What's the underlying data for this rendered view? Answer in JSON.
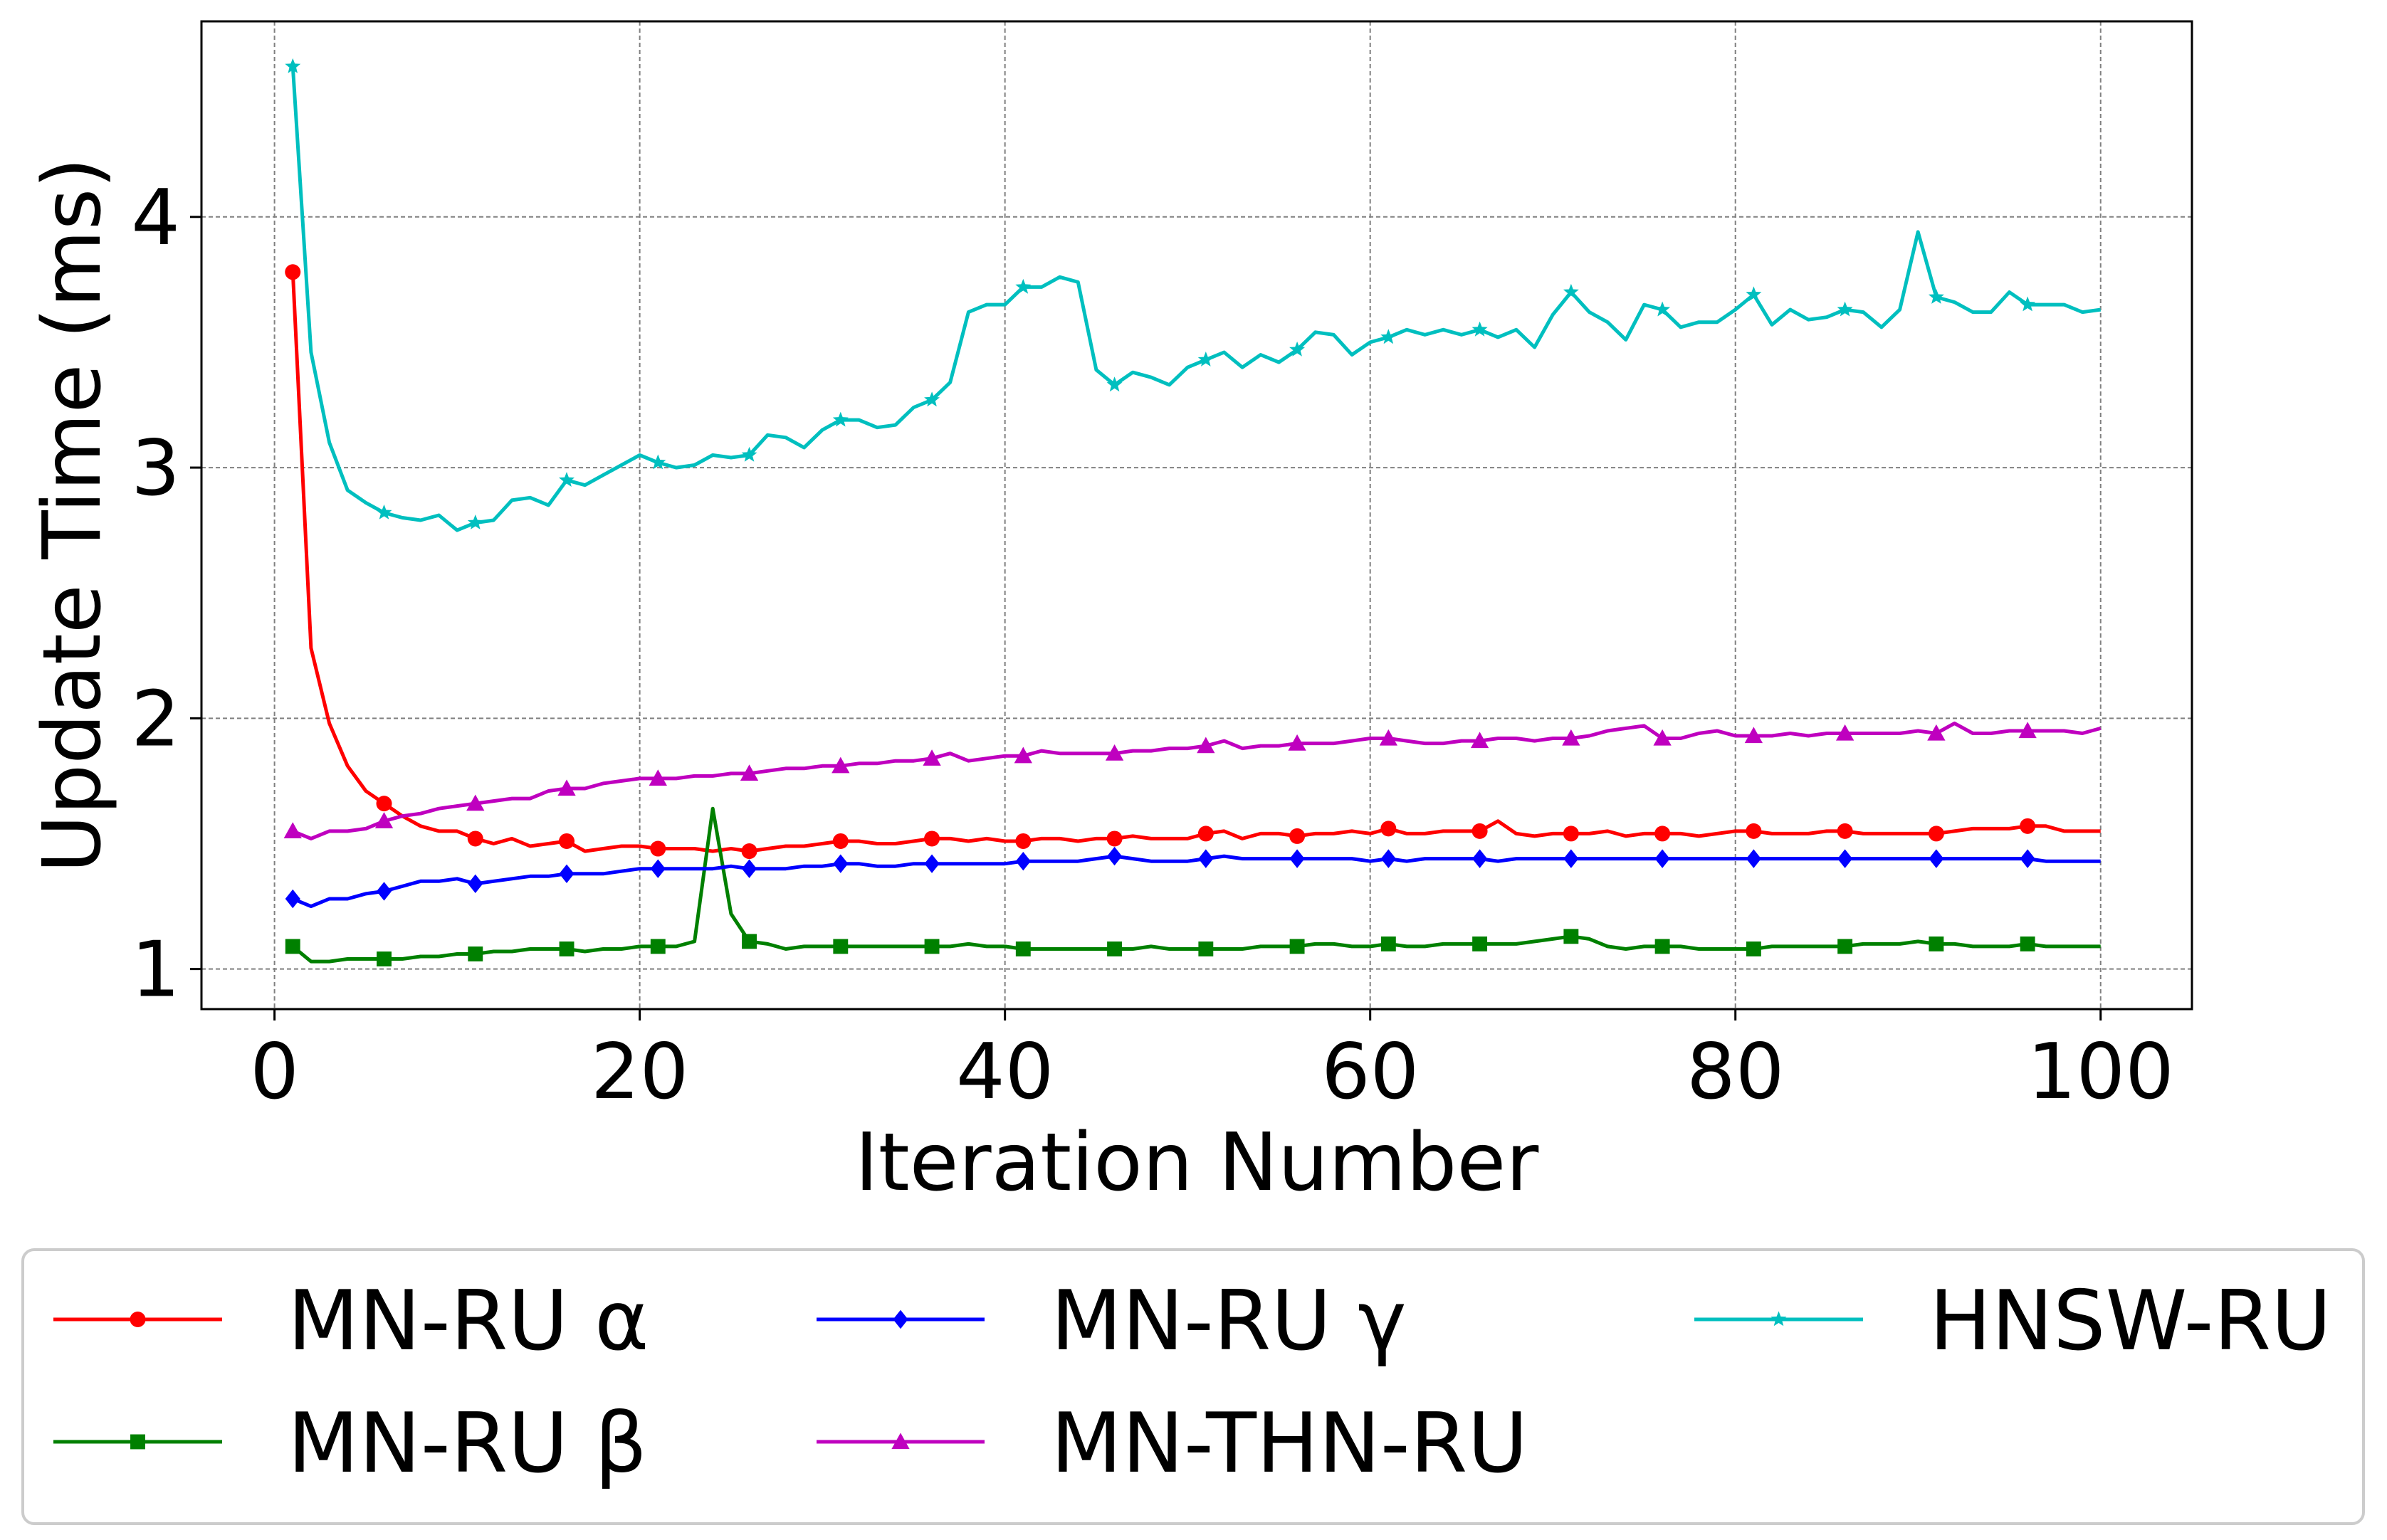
{
  "chart_data": {
    "type": "line",
    "title": "",
    "xlabel": "Iteration Number",
    "ylabel": "Update Time (ms)",
    "xlim": [
      -4,
      105
    ],
    "ylim": [
      0.84,
      4.78
    ],
    "xticks": [
      0,
      20,
      40,
      60,
      80,
      100
    ],
    "yticks": [
      1,
      2,
      3,
      4
    ],
    "grid": true,
    "legend_position": "bottom, outside, 3 columns",
    "x": [
      1,
      2,
      3,
      4,
      5,
      6,
      7,
      8,
      9,
      10,
      11,
      12,
      13,
      14,
      15,
      16,
      17,
      18,
      19,
      20,
      21,
      22,
      23,
      24,
      25,
      26,
      27,
      28,
      29,
      30,
      31,
      32,
      33,
      34,
      35,
      36,
      37,
      38,
      39,
      40,
      41,
      42,
      43,
      44,
      45,
      46,
      47,
      48,
      49,
      50,
      51,
      52,
      53,
      54,
      55,
      56,
      57,
      58,
      59,
      60,
      61,
      62,
      63,
      64,
      65,
      66,
      67,
      68,
      69,
      70,
      71,
      72,
      73,
      74,
      75,
      76,
      77,
      78,
      79,
      80,
      81,
      82,
      83,
      84,
      85,
      86,
      87,
      88,
      89,
      90,
      91,
      92,
      93,
      94,
      95,
      96,
      97,
      98,
      99,
      100
    ],
    "series": [
      {
        "name": "MN-RU α",
        "color": "#ff0000",
        "marker": "circle",
        "values": [
          3.78,
          2.28,
          1.98,
          1.81,
          1.71,
          1.66,
          1.61,
          1.57,
          1.55,
          1.55,
          1.52,
          1.5,
          1.52,
          1.49,
          1.5,
          1.51,
          1.47,
          1.48,
          1.49,
          1.49,
          1.48,
          1.48,
          1.48,
          1.47,
          1.48,
          1.47,
          1.48,
          1.49,
          1.49,
          1.5,
          1.51,
          1.51,
          1.5,
          1.5,
          1.51,
          1.52,
          1.52,
          1.51,
          1.52,
          1.51,
          1.51,
          1.52,
          1.52,
          1.51,
          1.52,
          1.52,
          1.53,
          1.52,
          1.52,
          1.52,
          1.54,
          1.55,
          1.52,
          1.54,
          1.54,
          1.53,
          1.54,
          1.54,
          1.55,
          1.54,
          1.56,
          1.54,
          1.54,
          1.55,
          1.55,
          1.55,
          1.59,
          1.54,
          1.53,
          1.54,
          1.54,
          1.54,
          1.55,
          1.53,
          1.54,
          1.54,
          1.54,
          1.53,
          1.54,
          1.55,
          1.55,
          1.54,
          1.54,
          1.54,
          1.55,
          1.55,
          1.54,
          1.54,
          1.54,
          1.54,
          1.54,
          1.55,
          1.56,
          1.56,
          1.56,
          1.57,
          1.57,
          1.55,
          1.55,
          1.55
        ]
      },
      {
        "name": "MN-RU β",
        "color": "#008000",
        "marker": "square",
        "values": [
          1.09,
          1.03,
          1.03,
          1.04,
          1.04,
          1.04,
          1.04,
          1.05,
          1.05,
          1.06,
          1.06,
          1.07,
          1.07,
          1.08,
          1.08,
          1.08,
          1.07,
          1.08,
          1.08,
          1.09,
          1.09,
          1.09,
          1.11,
          1.64,
          1.22,
          1.11,
          1.1,
          1.08,
          1.09,
          1.09,
          1.09,
          1.09,
          1.09,
          1.09,
          1.09,
          1.09,
          1.09,
          1.1,
          1.09,
          1.09,
          1.08,
          1.08,
          1.08,
          1.08,
          1.08,
          1.08,
          1.08,
          1.09,
          1.08,
          1.08,
          1.08,
          1.08,
          1.08,
          1.09,
          1.09,
          1.09,
          1.1,
          1.1,
          1.09,
          1.09,
          1.1,
          1.09,
          1.09,
          1.1,
          1.1,
          1.1,
          1.1,
          1.1,
          1.11,
          1.12,
          1.13,
          1.12,
          1.09,
          1.08,
          1.09,
          1.09,
          1.09,
          1.08,
          1.08,
          1.08,
          1.08,
          1.09,
          1.09,
          1.09,
          1.09,
          1.09,
          1.1,
          1.1,
          1.1,
          1.11,
          1.1,
          1.1,
          1.09,
          1.09,
          1.09,
          1.1,
          1.09,
          1.09,
          1.09,
          1.09
        ]
      },
      {
        "name": "MN-RU γ",
        "color": "#0000ff",
        "marker": "diamond",
        "values": [
          1.28,
          1.25,
          1.28,
          1.28,
          1.3,
          1.31,
          1.33,
          1.35,
          1.35,
          1.36,
          1.34,
          1.35,
          1.36,
          1.37,
          1.37,
          1.38,
          1.38,
          1.38,
          1.39,
          1.4,
          1.4,
          1.4,
          1.4,
          1.4,
          1.41,
          1.4,
          1.4,
          1.4,
          1.41,
          1.41,
          1.42,
          1.42,
          1.41,
          1.41,
          1.42,
          1.42,
          1.42,
          1.42,
          1.42,
          1.42,
          1.43,
          1.43,
          1.43,
          1.43,
          1.44,
          1.45,
          1.44,
          1.43,
          1.43,
          1.43,
          1.44,
          1.45,
          1.44,
          1.44,
          1.44,
          1.44,
          1.44,
          1.44,
          1.44,
          1.43,
          1.44,
          1.43,
          1.44,
          1.44,
          1.44,
          1.44,
          1.43,
          1.44,
          1.44,
          1.44,
          1.44,
          1.44,
          1.44,
          1.44,
          1.44,
          1.44,
          1.44,
          1.44,
          1.44,
          1.44,
          1.44,
          1.44,
          1.44,
          1.44,
          1.44,
          1.44,
          1.44,
          1.44,
          1.44,
          1.44,
          1.44,
          1.44,
          1.44,
          1.44,
          1.44,
          1.44,
          1.43,
          1.43,
          1.43,
          1.43
        ]
      },
      {
        "name": "MN-THN-RU",
        "color": "#bf00bf",
        "marker": "triangle",
        "values": [
          1.55,
          1.52,
          1.55,
          1.55,
          1.56,
          1.59,
          1.61,
          1.62,
          1.64,
          1.65,
          1.66,
          1.67,
          1.68,
          1.68,
          1.71,
          1.72,
          1.72,
          1.74,
          1.75,
          1.76,
          1.76,
          1.76,
          1.77,
          1.77,
          1.78,
          1.78,
          1.79,
          1.8,
          1.8,
          1.81,
          1.81,
          1.82,
          1.82,
          1.83,
          1.83,
          1.84,
          1.86,
          1.83,
          1.84,
          1.85,
          1.85,
          1.87,
          1.86,
          1.86,
          1.86,
          1.86,
          1.87,
          1.87,
          1.88,
          1.88,
          1.89,
          1.91,
          1.88,
          1.89,
          1.89,
          1.9,
          1.9,
          1.9,
          1.91,
          1.92,
          1.92,
          1.91,
          1.9,
          1.9,
          1.91,
          1.91,
          1.92,
          1.92,
          1.91,
          1.92,
          1.92,
          1.93,
          1.95,
          1.96,
          1.97,
          1.92,
          1.92,
          1.94,
          1.95,
          1.93,
          1.93,
          1.93,
          1.94,
          1.93,
          1.94,
          1.94,
          1.94,
          1.94,
          1.94,
          1.95,
          1.94,
          1.98,
          1.94,
          1.94,
          1.95,
          1.95,
          1.95,
          1.95,
          1.94,
          1.96
        ]
      },
      {
        "name": "HNSW-RU",
        "color": "#00bfbf",
        "marker": "star",
        "values": [
          4.6,
          3.46,
          3.1,
          2.91,
          2.86,
          2.82,
          2.8,
          2.79,
          2.81,
          2.75,
          2.78,
          2.79,
          2.87,
          2.88,
          2.85,
          2.95,
          2.93,
          2.97,
          3.01,
          3.05,
          3.02,
          3.0,
          3.01,
          3.05,
          3.04,
          3.05,
          3.13,
          3.12,
          3.08,
          3.15,
          3.19,
          3.19,
          3.16,
          3.17,
          3.24,
          3.27,
          3.34,
          3.62,
          3.65,
          3.65,
          3.72,
          3.72,
          3.76,
          3.74,
          3.39,
          3.33,
          3.38,
          3.36,
          3.33,
          3.4,
          3.43,
          3.46,
          3.4,
          3.45,
          3.42,
          3.47,
          3.54,
          3.53,
          3.45,
          3.5,
          3.52,
          3.55,
          3.53,
          3.55,
          3.53,
          3.55,
          3.52,
          3.55,
          3.48,
          3.61,
          3.7,
          3.62,
          3.58,
          3.51,
          3.65,
          3.63,
          3.56,
          3.58,
          3.58,
          3.63,
          3.69,
          3.57,
          3.63,
          3.59,
          3.6,
          3.63,
          3.62,
          3.56,
          3.63,
          3.94,
          3.68,
          3.66,
          3.62,
          3.62,
          3.7,
          3.65,
          3.65,
          3.65,
          3.62,
          3.63
        ]
      }
    ]
  }
}
